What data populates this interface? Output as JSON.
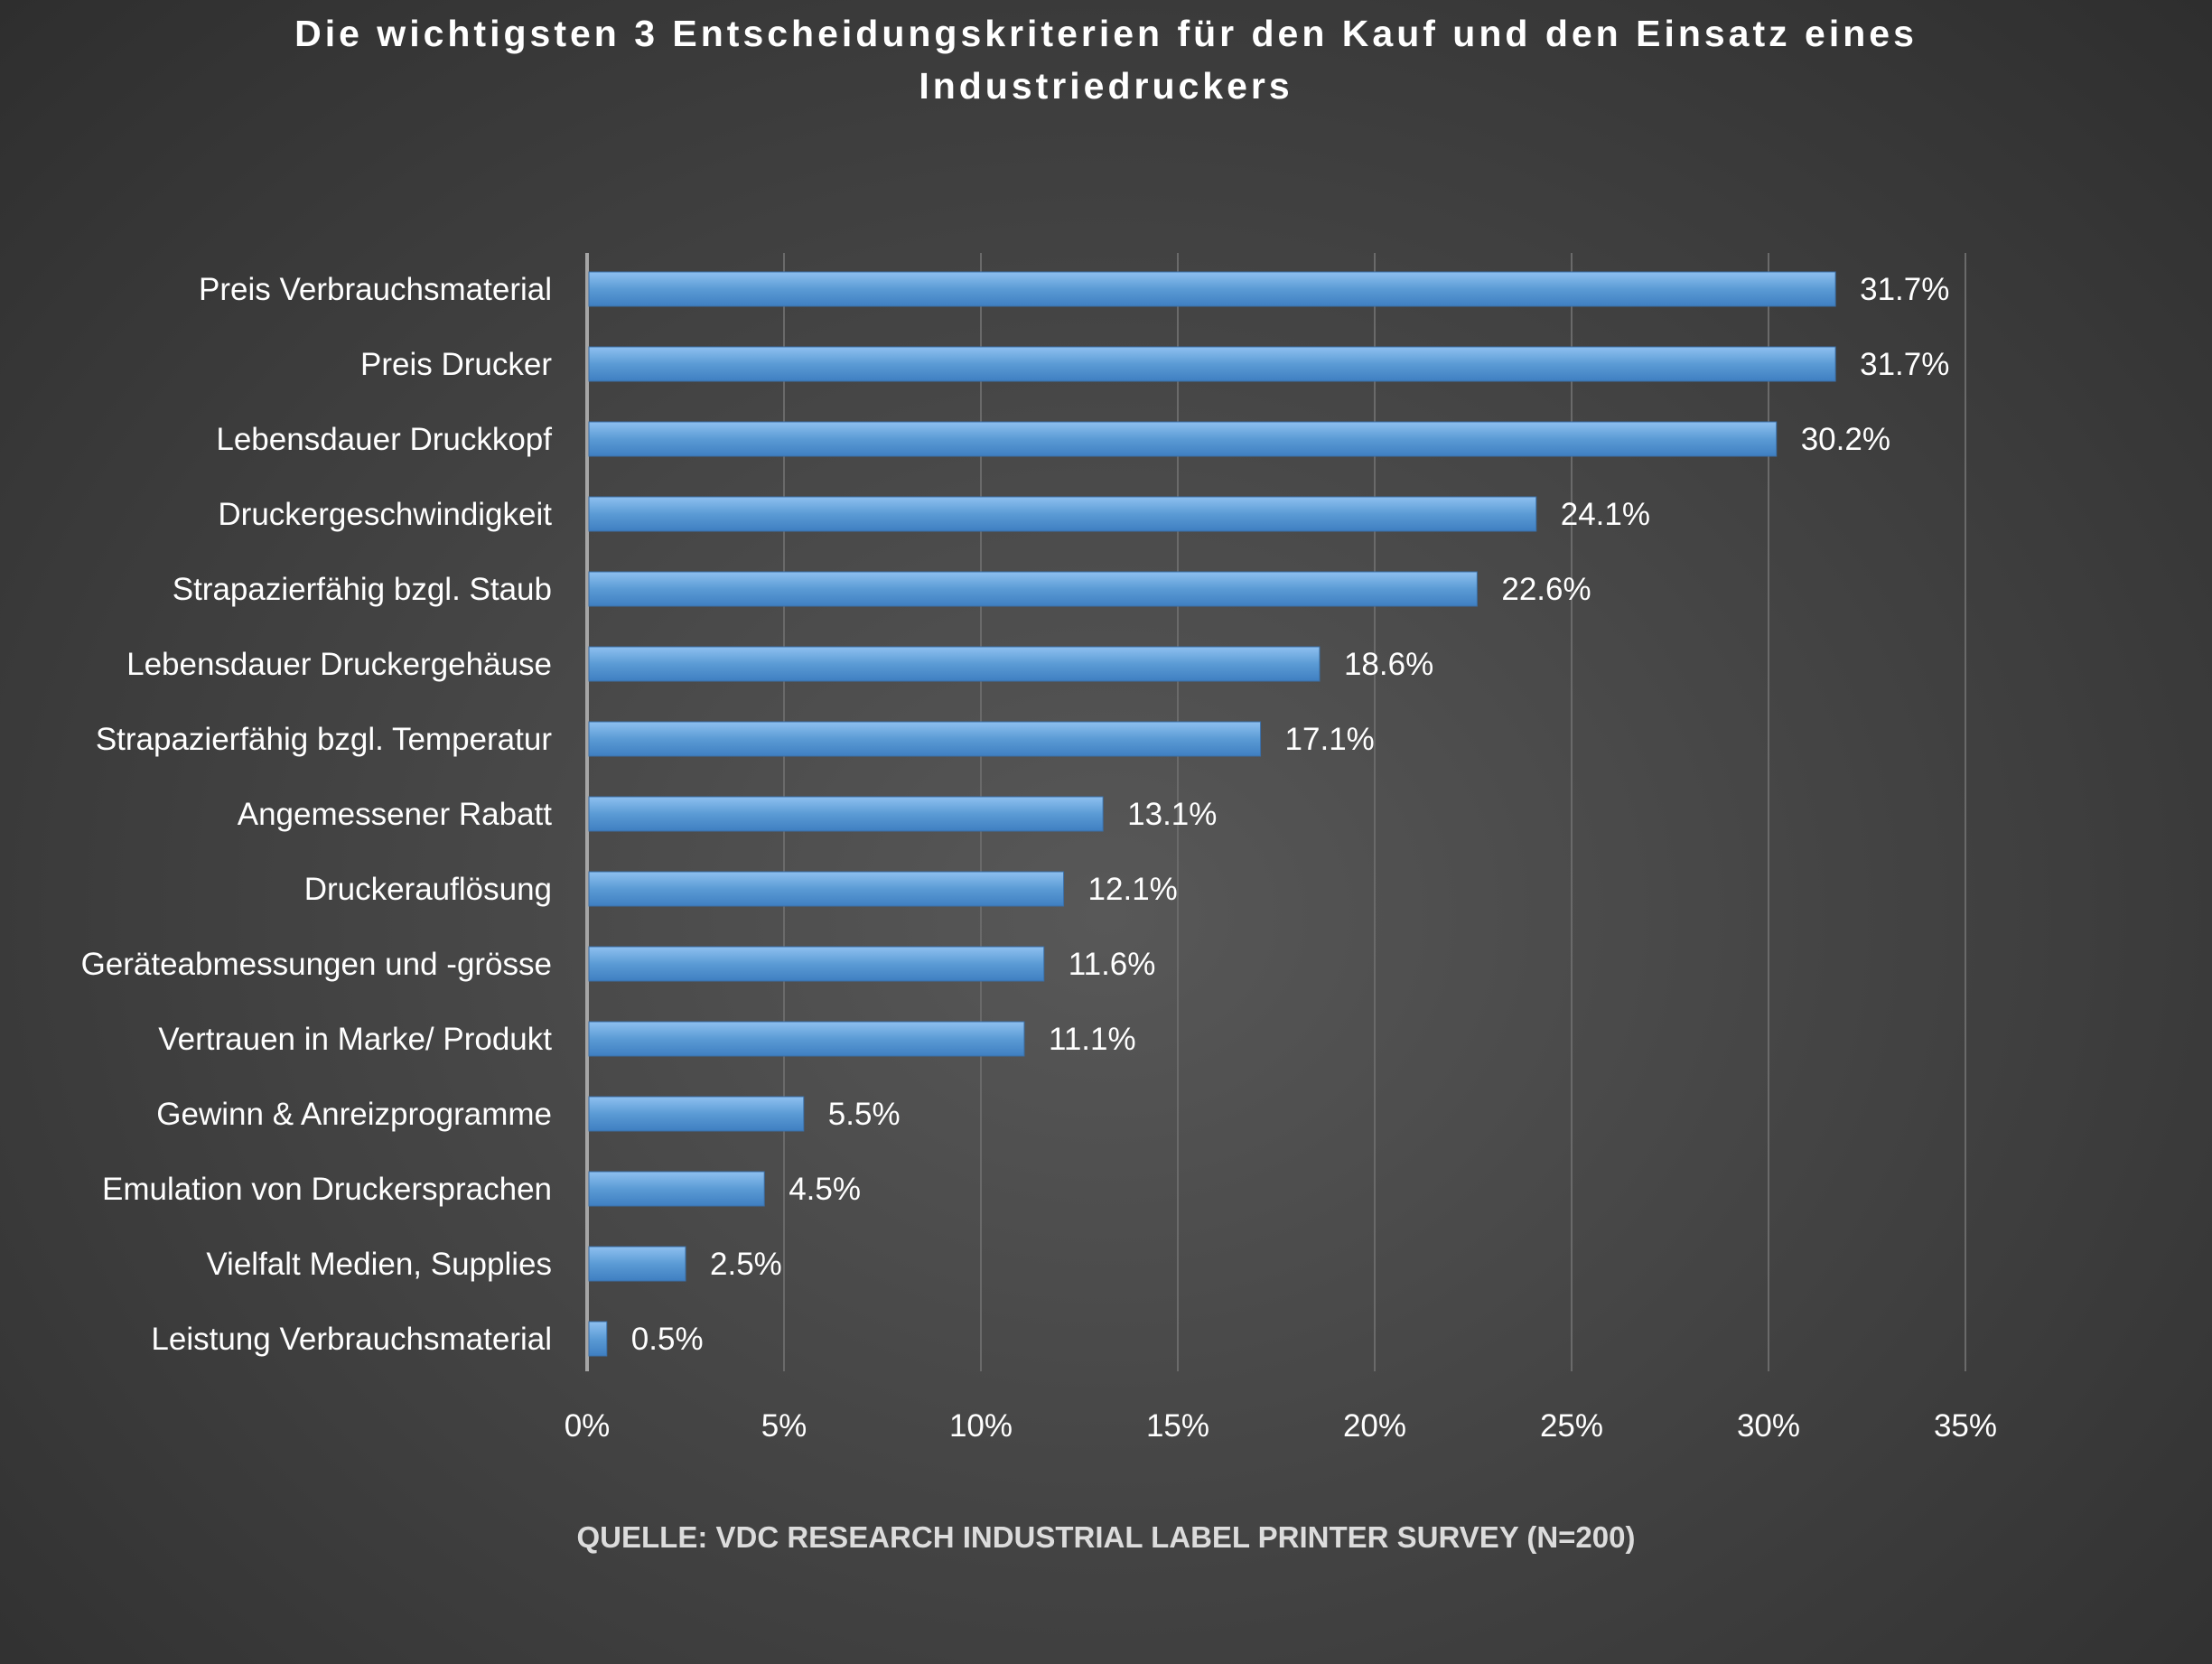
{
  "chart_data": {
    "type": "bar",
    "orientation": "horizontal",
    "title": "Die wichtigsten 3 Entscheidungskriterien für den Kauf und den Einsatz eines Industriedruckers",
    "source": "QUELLE: VDC RESEARCH INDUSTRIAL LABEL PRINTER SURVEY (N=200)",
    "categories": [
      "Preis Verbrauchsmaterial",
      "Preis Drucker",
      "Lebensdauer Druckkopf",
      "Druckergeschwindigkeit",
      "Strapazierfähig bzgl. Staub",
      "Lebensdauer Druckergehäuse",
      "Strapazierfähig bzgl. Temperatur",
      "Angemessener Rabatt",
      "Druckerauflösung",
      "Geräteabmessungen und -grösse",
      "Vertrauen in Marke/ Produkt",
      "Gewinn & Anreizprogramme",
      "Emulation von Druckersprachen",
      "Vielfalt Medien, Supplies",
      "Leistung Verbrauchsmaterial"
    ],
    "values": [
      31.7,
      31.7,
      30.2,
      24.1,
      22.6,
      18.6,
      17.1,
      13.1,
      12.1,
      11.6,
      11.1,
      5.5,
      4.5,
      2.5,
      0.5
    ],
    "value_labels": [
      "31.7%",
      "31.7%",
      "30.2%",
      "24.1%",
      "22.6%",
      "18.6%",
      "17.1%",
      "13.1%",
      "12.1%",
      "11.6%",
      "11.1%",
      "5.5%",
      "4.5%",
      "2.5%",
      "0.5%"
    ],
    "xlim": [
      0,
      35
    ],
    "x_ticks": [
      0,
      5,
      10,
      15,
      20,
      25,
      30,
      35
    ],
    "x_tick_labels": [
      "0%",
      "5%",
      "10%",
      "15%",
      "20%",
      "25%",
      "30%",
      "35%"
    ],
    "grid": "vertical",
    "legend": "none",
    "bar_color": "#5b9bd5"
  }
}
